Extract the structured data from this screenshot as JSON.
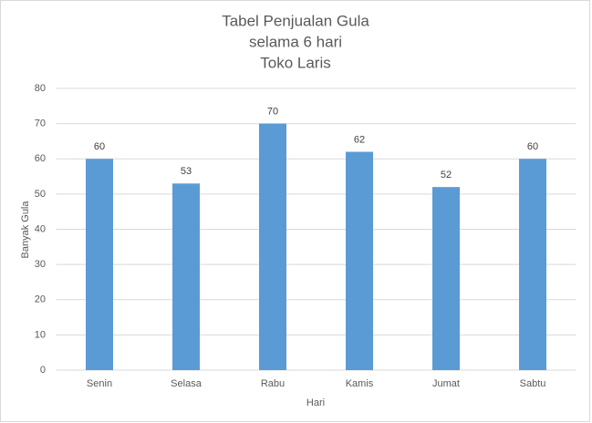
{
  "chart_data": {
    "type": "bar",
    "title": [
      "Tabel Penjualan Gula",
      "selama 6 hari",
      "Toko Laris"
    ],
    "x_label": "Hari",
    "y_label": "Banyak Gula",
    "categories": [
      "Senin",
      "Selasa",
      "Rabu",
      "Kamis",
      "Jumat",
      "Sabtu"
    ],
    "values": [
      60,
      53,
      70,
      62,
      52,
      60
    ],
    "color": "#5b9bd5",
    "ylim": [
      0,
      80
    ],
    "yticks": [
      0,
      10,
      20,
      30,
      40,
      50,
      60,
      70,
      80
    ],
    "grid": true
  }
}
